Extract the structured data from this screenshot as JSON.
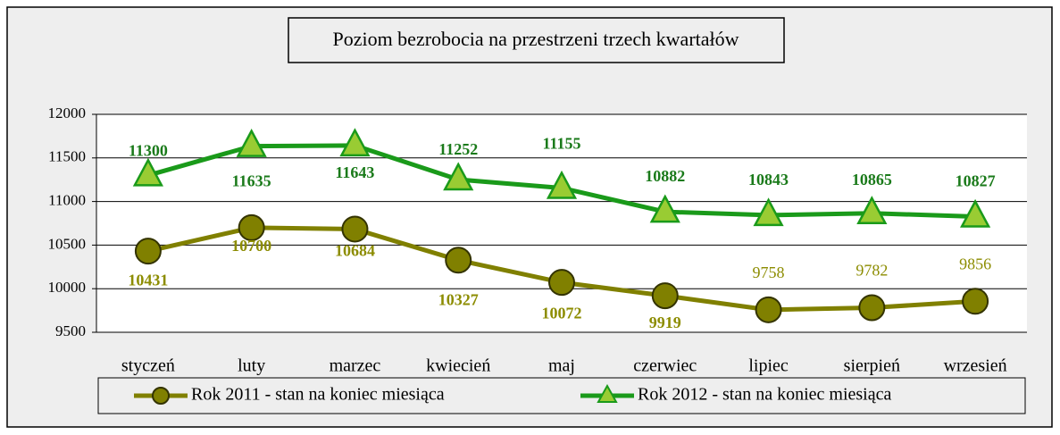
{
  "chart_data": {
    "type": "line",
    "title": "Poziom bezrobocia na przestrzeni trzech kwartałów",
    "categories": [
      "styczeń",
      "luty",
      "marzec",
      "kwiecień",
      "maj",
      "czerwiec",
      "lipiec",
      "sierpień",
      "wrzesień"
    ],
    "series": [
      {
        "name": "Rok 2011 - stan na koniec miesiąca",
        "color": "#808000",
        "values": [
          10431,
          10700,
          10684,
          10327,
          10072,
          9919,
          9758,
          9782,
          9856
        ]
      },
      {
        "name": "Rok 2012 - stan na koniec miesiąca",
        "color": "#1a9a1a",
        "values": [
          11300,
          11635,
          11643,
          11252,
          11155,
          10882,
          10843,
          10865,
          10827
        ]
      }
    ],
    "ylim": [
      9500,
      12000
    ],
    "yticks": [
      9500,
      10000,
      10500,
      11000,
      11500,
      12000
    ],
    "grid": true
  }
}
